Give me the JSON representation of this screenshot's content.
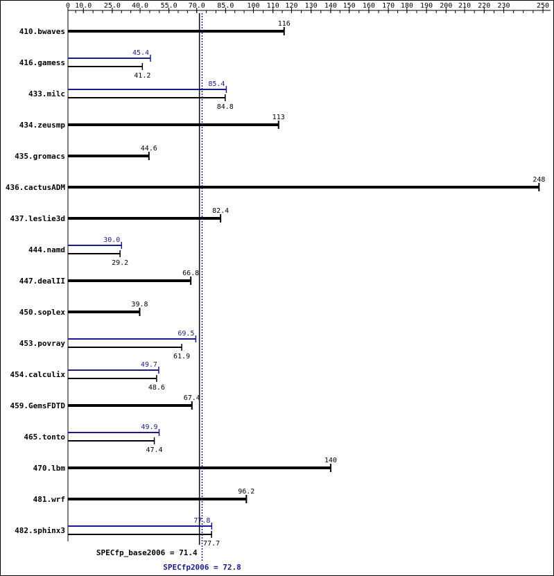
{
  "chart_data": {
    "type": "bar",
    "orientation": "horizontal",
    "x_ticks": [
      0,
      10.0,
      25.0,
      40.0,
      55.0,
      70.0,
      85.0,
      100,
      110,
      120,
      130,
      140,
      150,
      160,
      170,
      180,
      190,
      200,
      210,
      220,
      230,
      250
    ],
    "x_tick_labels": [
      "0",
      "10.0",
      "25.0",
      "40.0",
      "55.0",
      "70.0",
      "85.0",
      "100",
      "110",
      "120",
      "130",
      "140",
      "150",
      "160",
      "170",
      "180",
      "190",
      "200",
      "210",
      "220",
      "230",
      "250"
    ],
    "xlim": [
      0,
      250
    ],
    "categories": [
      "410.bwaves",
      "416.gamess",
      "433.milc",
      "434.zeusmp",
      "435.gromacs",
      "436.cactusADM",
      "437.leslie3d",
      "444.namd",
      "447.dealII",
      "450.soplex",
      "453.povray",
      "454.calculix",
      "459.GemsFDTD",
      "465.tonto",
      "470.lbm",
      "481.wrf",
      "482.sphinx3"
    ],
    "series": [
      {
        "name": "base",
        "color": "#000000",
        "values": [
          116,
          41.2,
          84.8,
          113,
          44.6,
          248,
          82.4,
          29.2,
          66.8,
          39.8,
          61.9,
          48.6,
          67.4,
          47.4,
          140,
          96.2,
          77.7
        ],
        "labels": [
          "116",
          "41.2",
          "84.8",
          "113",
          "44.6",
          "248",
          "82.4",
          "29.2",
          "66.8",
          "39.8",
          "61.9",
          "48.6",
          "67.4",
          "47.4",
          "140",
          "96.2",
          "77.7"
        ]
      },
      {
        "name": "peak",
        "color": "#1a1a8c",
        "values": [
          null,
          45.4,
          85.4,
          null,
          null,
          null,
          null,
          30.0,
          null,
          null,
          69.5,
          49.7,
          null,
          49.9,
          null,
          null,
          77.8
        ],
        "labels": [
          null,
          "45.4",
          "85.4",
          null,
          null,
          null,
          null,
          "30.0",
          null,
          null,
          "69.5",
          "49.7",
          null,
          "49.9",
          null,
          null,
          "77.8"
        ]
      }
    ],
    "reference_lines": [
      {
        "value": 71.4,
        "style": "solid",
        "color": "#000000"
      },
      {
        "value": 72.8,
        "style": "dotted",
        "color": "#1a1a8c"
      }
    ],
    "summary": {
      "base_text": "SPECfp_base2006 = 71.4",
      "peak_text": "SPECfp2006 = 72.8",
      "base_color": "#000000",
      "peak_color": "#1a1a8c"
    }
  }
}
